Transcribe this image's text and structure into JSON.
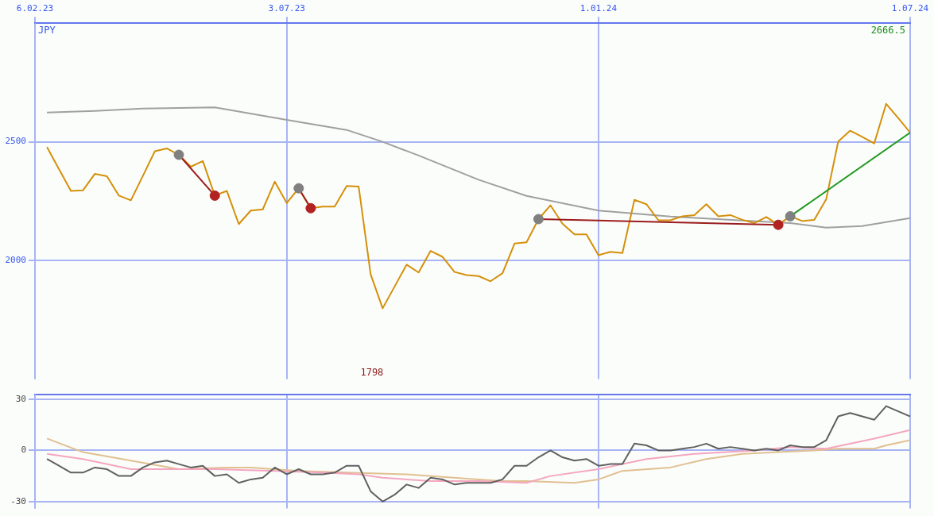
{
  "chart_data": [
    {
      "type": "line",
      "ylabel": "JPY",
      "xlim": [
        "2023-02-06",
        "2024-07-01"
      ],
      "xticks": [
        {
          "value": "2023-02-06",
          "label": "6.02.23"
        },
        {
          "value": "2023-07-03",
          "label": "3.07.23"
        },
        {
          "value": "2024-01-01",
          "label": "1.01.24"
        },
        {
          "value": "2024-07-01",
          "label": "1.07.24"
        }
      ],
      "ylim": [
        1500,
        3000
      ],
      "yticks": [
        2000,
        2500
      ],
      "grid": true,
      "legend": false,
      "annotations": [
        "2666.5",
        "1798"
      ],
      "x": [
        "2023-02-13",
        "2023-02-20",
        "2023-02-27",
        "2023-03-06",
        "2023-03-13",
        "2023-03-20",
        "2023-03-27",
        "2023-04-03",
        "2023-04-10",
        "2023-04-17",
        "2023-04-24",
        "2023-05-01",
        "2023-05-08",
        "2023-05-15",
        "2023-05-22",
        "2023-05-29",
        "2023-06-05",
        "2023-06-12",
        "2023-06-19",
        "2023-06-26",
        "2023-07-03",
        "2023-07-10",
        "2023-07-17",
        "2023-07-24",
        "2023-07-31",
        "2023-08-07",
        "2023-08-14",
        "2023-08-21",
        "2023-08-28",
        "2023-09-04",
        "2023-09-11",
        "2023-09-18",
        "2023-09-25",
        "2023-10-02",
        "2023-10-09",
        "2023-10-16",
        "2023-10-23",
        "2023-10-30",
        "2023-11-06",
        "2023-11-13",
        "2023-11-20",
        "2023-11-27",
        "2023-12-04",
        "2023-12-11",
        "2023-12-18",
        "2023-12-25",
        "2024-01-01",
        "2024-01-08",
        "2024-01-15",
        "2024-01-22",
        "2024-01-29",
        "2024-02-05",
        "2024-02-12",
        "2024-02-19",
        "2024-02-26",
        "2024-03-04",
        "2024-03-11",
        "2024-03-18",
        "2024-03-25",
        "2024-04-01",
        "2024-04-08",
        "2024-04-15",
        "2024-04-22",
        "2024-04-29",
        "2024-05-06",
        "2024-05-13",
        "2024-05-20",
        "2024-05-27",
        "2024-06-03",
        "2024-06-10",
        "2024-06-17",
        "2024-06-24",
        "2024-07-01"
      ],
      "series": [
        {
          "color": "#a0a0a0",
          "x": [
            "2023-02-13",
            "2023-03-13",
            "2023-04-10",
            "2023-05-22",
            "2023-07-03",
            "2023-08-07",
            "2023-08-28",
            "2023-09-18",
            "2023-10-23",
            "2023-11-20",
            "2024-01-01",
            "2024-02-12",
            "2024-03-25",
            "2024-04-22",
            "2024-05-13",
            "2024-06-03",
            "2024-07-01"
          ],
          "values": [
            2623,
            2630,
            2640,
            2645,
            2592,
            2550,
            2500,
            2442,
            2340,
            2272,
            2210,
            2185,
            2168,
            2157,
            2138,
            2145,
            2178
          ]
        },
        {
          "color": "#d4900a",
          "values": [
            2478,
            2385,
            2293,
            2295,
            2365,
            2355,
            2273,
            2253,
            2356,
            2460,
            2472,
            2445,
            2395,
            2419,
            2273,
            2293,
            2153,
            2210,
            2215,
            2332,
            2242,
            2304,
            2220,
            2227,
            2227,
            2314,
            2311,
            1941,
            1798,
            1890,
            1982,
            1949,
            2040,
            2015,
            1951,
            1938,
            1934,
            1912,
            1946,
            2071,
            2076,
            2174,
            2232,
            2155,
            2110,
            2110,
            2022,
            2036,
            2031,
            2255,
            2237,
            2169,
            2169,
            2186,
            2191,
            2237,
            2186,
            2191,
            2171,
            2157,
            2183,
            2150,
            2186,
            2166,
            2171,
            2258,
            2501,
            2547,
            2521,
            2493,
            2660,
            2600,
            2539
          ]
        },
        {
          "color": "#9b1c1c",
          "x": [
            "2023-05-01",
            "2023-05-22"
          ],
          "values": [
            2445,
            2273
          ]
        },
        {
          "color": "#9b1c1c",
          "x": [
            "2023-07-10",
            "2023-07-17"
          ],
          "values": [
            2304,
            2220
          ]
        },
        {
          "color": "#9b1c1c",
          "x": [
            "2023-11-27",
            "2024-04-15"
          ],
          "values": [
            2174,
            2150
          ]
        },
        {
          "color": "#229922",
          "x": [
            "2024-04-22",
            "2024-07-01"
          ],
          "values": [
            2186,
            2539
          ]
        },
        {
          "type": "scatter",
          "color": "#808080",
          "x": [
            "2023-05-01",
            "2023-07-10",
            "2023-11-27",
            "2024-04-22"
          ],
          "values": [
            2445,
            2304,
            2174,
            2186
          ]
        },
        {
          "type": "scatter",
          "color": "#b22222",
          "x": [
            "2023-05-22",
            "2023-07-17",
            "2024-04-15"
          ],
          "values": [
            2273,
            2220,
            2150
          ]
        }
      ]
    },
    {
      "type": "line",
      "tick_labels": "y",
      "xlim": [
        "2023-02-06",
        "2024-07-01"
      ],
      "xticks": [
        {
          "value": "2023-02-06",
          "label": null
        },
        {
          "value": "2023-07-03",
          "label": null
        },
        {
          "value": "2024-01-01",
          "label": null
        },
        {
          "value": "2024-07-01",
          "label": null
        }
      ],
      "ylim": [
        -34,
        33
      ],
      "yticks": [
        -30,
        0,
        30
      ],
      "grid": true,
      "legend": false,
      "x": [
        "2023-02-13",
        "2023-02-20",
        "2023-02-27",
        "2023-03-06",
        "2023-03-13",
        "2023-03-20",
        "2023-03-27",
        "2023-04-03",
        "2023-04-10",
        "2023-04-17",
        "2023-04-24",
        "2023-05-01",
        "2023-05-08",
        "2023-05-15",
        "2023-05-22",
        "2023-05-29",
        "2023-06-05",
        "2023-06-12",
        "2023-06-19",
        "2023-06-26",
        "2023-07-03",
        "2023-07-10",
        "2023-07-17",
        "2023-07-24",
        "2023-07-31",
        "2023-08-07",
        "2023-08-14",
        "2023-08-21",
        "2023-08-28",
        "2023-09-04",
        "2023-09-11",
        "2023-09-18",
        "2023-09-25",
        "2023-10-02",
        "2023-10-09",
        "2023-10-16",
        "2023-10-23",
        "2023-10-30",
        "2023-11-06",
        "2023-11-13",
        "2023-11-20",
        "2023-11-27",
        "2023-12-04",
        "2023-12-11",
        "2023-12-18",
        "2023-12-25",
        "2024-01-01",
        "2024-01-08",
        "2024-01-15",
        "2024-01-22",
        "2024-01-29",
        "2024-02-05",
        "2024-02-12",
        "2024-02-19",
        "2024-02-26",
        "2024-03-04",
        "2024-03-11",
        "2024-03-18",
        "2024-03-25",
        "2024-04-01",
        "2024-04-08",
        "2024-04-15",
        "2024-04-22",
        "2024-04-29",
        "2024-05-06",
        "2024-05-13",
        "2024-05-20",
        "2024-05-27",
        "2024-06-03",
        "2024-06-10",
        "2024-06-17",
        "2024-06-24",
        "2024-07-01"
      ],
      "series": [
        {
          "color": "#e0c090",
          "x": [
            "2023-02-13",
            "2023-03-06",
            "2023-04-03",
            "2023-05-01",
            "2023-05-29",
            "2023-06-12",
            "2023-07-10",
            "2023-08-07",
            "2023-09-11",
            "2023-10-23",
            "2023-11-06",
            "2023-11-20",
            "2023-12-18",
            "2024-01-01",
            "2024-01-15",
            "2024-02-12",
            "2024-03-04",
            "2024-03-25",
            "2024-04-15",
            "2024-05-06",
            "2024-05-20",
            "2024-06-10",
            "2024-06-17",
            "2024-07-01"
          ],
          "values": [
            7,
            -1,
            -6,
            -11,
            -10,
            -10,
            -12,
            -13,
            -14,
            -17,
            -18,
            -18,
            -19,
            -17,
            -12,
            -10,
            -5,
            -2,
            -1,
            0,
            1,
            1,
            3,
            6
          ]
        },
        {
          "color": "#f4a6c0",
          "x": [
            "2023-02-13",
            "2023-03-06",
            "2023-04-03",
            "2023-04-17",
            "2023-05-22",
            "2023-06-26",
            "2023-07-24",
            "2023-08-14",
            "2023-08-28",
            "2023-09-25",
            "2023-10-23",
            "2023-11-20",
            "2023-12-04",
            "2024-01-01",
            "2024-01-29",
            "2024-02-26",
            "2024-04-01",
            "2024-04-22",
            "2024-05-13",
            "2024-06-10",
            "2024-07-01"
          ],
          "values": [
            -2,
            -5,
            -11,
            -11,
            -11,
            -12,
            -13,
            -14,
            -16,
            -18,
            -18,
            -19,
            -15,
            -11,
            -5,
            -2,
            0,
            2,
            1,
            7,
            12
          ]
        },
        {
          "color": "#606060",
          "values": [
            -5,
            -9,
            -13,
            -13,
            -10,
            -11,
            -15,
            -15,
            -10,
            -7,
            -6,
            -8,
            -10,
            -9,
            -15,
            -14,
            -19,
            -17,
            -16,
            -10,
            -14,
            -11,
            -14,
            -14,
            -13,
            -9,
            -9,
            -24,
            -30,
            -26,
            -20,
            -22,
            -16,
            -17,
            -20,
            -19,
            -19,
            -19,
            -17,
            -9,
            -9,
            -4,
            0,
            -4,
            -6,
            -5,
            -9,
            -8,
            -8,
            4,
            3,
            0,
            0,
            1,
            2,
            4,
            1,
            2,
            1,
            0,
            1,
            0,
            3,
            2,
            2,
            6,
            20,
            22,
            20,
            18,
            26,
            23,
            20
          ]
        }
      ]
    }
  ]
}
